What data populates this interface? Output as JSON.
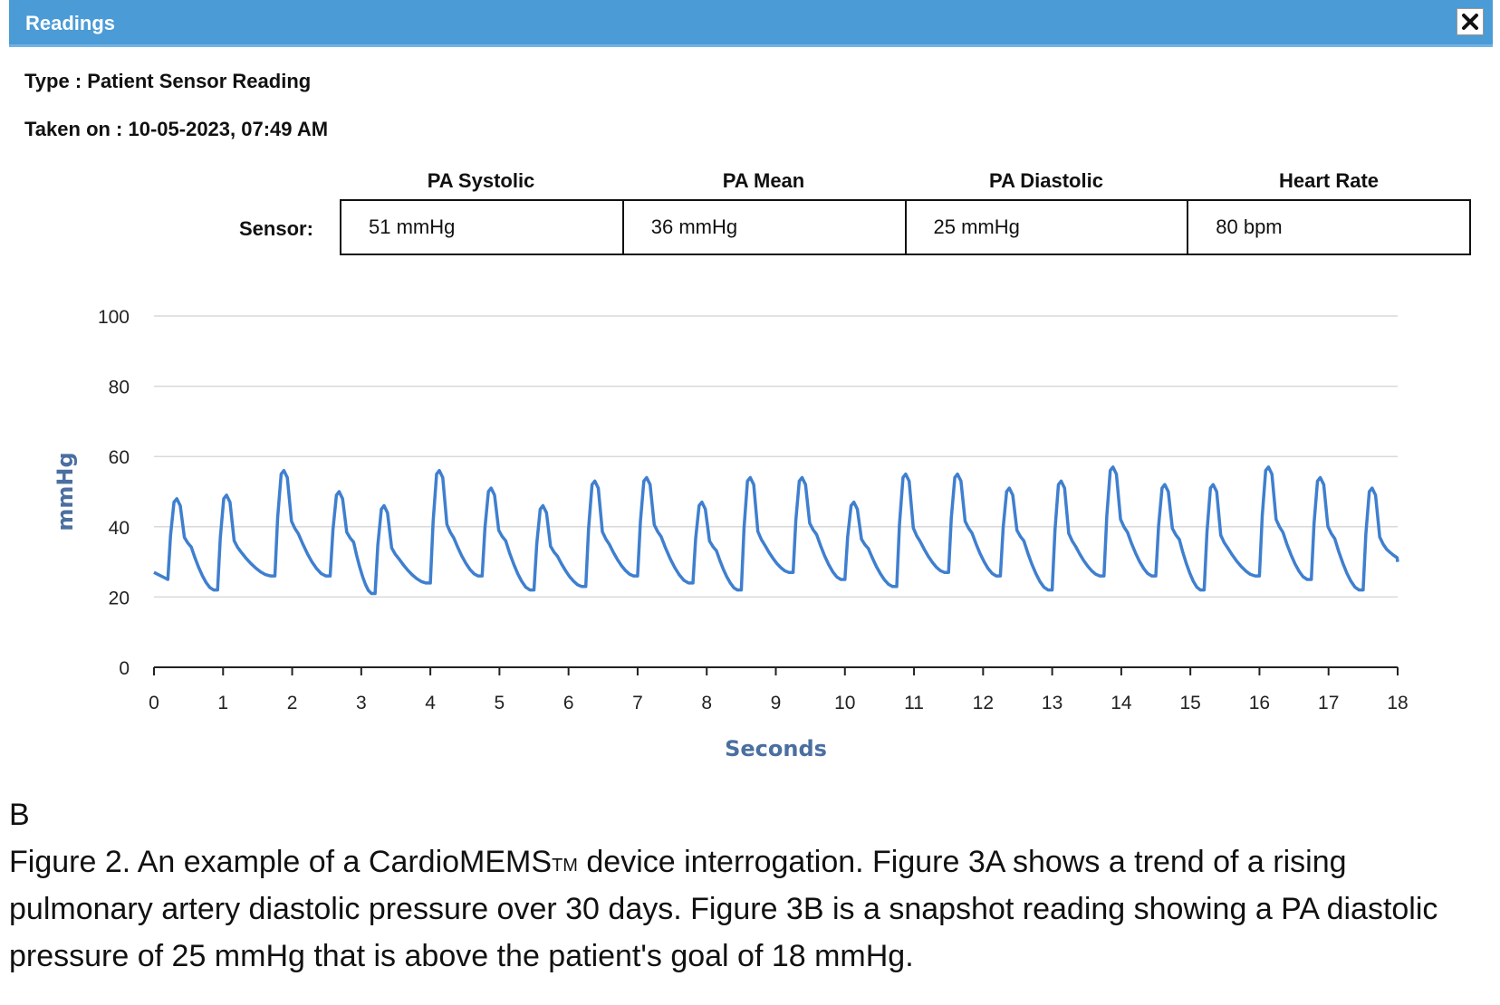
{
  "window": {
    "title": "Readings",
    "close_icon": "close-icon"
  },
  "meta": {
    "type_line": "Type : Patient Sensor Reading",
    "taken_line": "Taken on : 10-05-2023, 07:49 AM"
  },
  "sensor": {
    "row_label": "Sensor:",
    "headers": [
      "PA Systolic",
      "PA Mean",
      "PA Diastolic",
      "Heart Rate"
    ],
    "values": [
      "51 mmHg",
      "36 mmHg",
      "25 mmHg",
      "80 bpm"
    ]
  },
  "caption": {
    "panel": "B",
    "text_before_tm": "Figure 2. An example of a CardioMEMS",
    "tm": "TM",
    "text_after_tm": " device interrogation. Figure 3A shows a trend of a rising pulmonary artery diastolic pressure over 30 days. Figure 3B is a snapshot reading showing a PA diastolic pressure of 25 mmHg that is above the patient's goal of 18 mmHg."
  },
  "chart_data": {
    "type": "line",
    "xlabel": "Seconds",
    "ylabel": "mmHg",
    "xlim": [
      0,
      18
    ],
    "ylim": [
      0,
      100
    ],
    "x_ticks": [
      0,
      1,
      2,
      3,
      4,
      5,
      6,
      7,
      8,
      9,
      10,
      11,
      12,
      13,
      14,
      15,
      16,
      17,
      18
    ],
    "y_ticks": [
      0,
      20,
      40,
      60,
      80,
      100
    ],
    "grid": "horizontal",
    "line_color": "#3f7fcf",
    "axis_label_color": "#4a6fa0",
    "beats": [
      {
        "start": 0.2,
        "diastolic": 25,
        "peak": 48
      },
      {
        "start": 0.92,
        "diastolic": 22,
        "peak": 49
      },
      {
        "start": 1.75,
        "diastolic": 26,
        "peak": 56
      },
      {
        "start": 2.55,
        "diastolic": 26,
        "peak": 50
      },
      {
        "start": 3.2,
        "diastolic": 21,
        "peak": 46
      },
      {
        "start": 4.0,
        "diastolic": 24,
        "peak": 56
      },
      {
        "start": 4.75,
        "diastolic": 26,
        "peak": 51
      },
      {
        "start": 5.5,
        "diastolic": 22,
        "peak": 46
      },
      {
        "start": 6.25,
        "diastolic": 23,
        "peak": 53
      },
      {
        "start": 7.0,
        "diastolic": 26,
        "peak": 54
      },
      {
        "start": 7.8,
        "diastolic": 24,
        "peak": 47
      },
      {
        "start": 8.5,
        "diastolic": 22,
        "peak": 54
      },
      {
        "start": 9.25,
        "diastolic": 27,
        "peak": 54
      },
      {
        "start": 10.0,
        "diastolic": 25,
        "peak": 47
      },
      {
        "start": 10.75,
        "diastolic": 23,
        "peak": 55
      },
      {
        "start": 11.5,
        "diastolic": 27,
        "peak": 55
      },
      {
        "start": 12.25,
        "diastolic": 26,
        "peak": 51
      },
      {
        "start": 13.0,
        "diastolic": 22,
        "peak": 53
      },
      {
        "start": 13.75,
        "diastolic": 26,
        "peak": 57
      },
      {
        "start": 14.5,
        "diastolic": 26,
        "peak": 52
      },
      {
        "start": 15.2,
        "diastolic": 22,
        "peak": 52
      },
      {
        "start": 16.0,
        "diastolic": 26,
        "peak": 57
      },
      {
        "start": 16.75,
        "diastolic": 25,
        "peak": 54
      },
      {
        "start": 17.5,
        "diastolic": 22,
        "peak": 51
      }
    ],
    "start_value": 27,
    "end": {
      "x": 18,
      "y": 30
    }
  }
}
